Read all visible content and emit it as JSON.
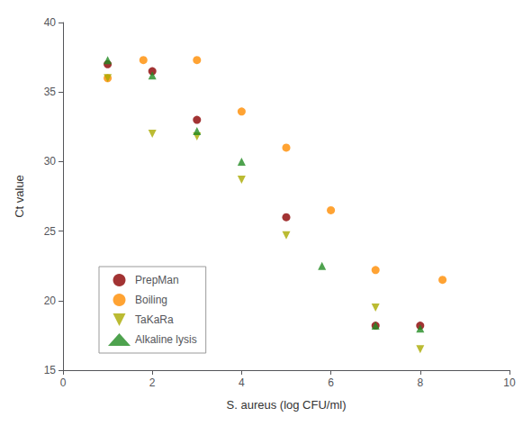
{
  "chart_data": {
    "type": "scatter",
    "xlabel": "S. aureus (log CFU/ml)",
    "ylabel": "Ct value",
    "xlim": [
      0,
      10
    ],
    "ylim": [
      15,
      40
    ],
    "xticks": [
      0,
      2,
      4,
      6,
      8,
      10
    ],
    "yticks": [
      15,
      20,
      25,
      30,
      35,
      40
    ],
    "grid": false,
    "legend": "lower left",
    "series": [
      {
        "name": "PrepMan",
        "color": "#8B0000",
        "marker": "circle",
        "x": [
          1,
          2,
          3,
          5,
          7,
          8
        ],
        "values": [
          37.0,
          36.5,
          33.0,
          26.0,
          18.2,
          18.2
        ]
      },
      {
        "name": "Boiling",
        "color": "#FF8C00",
        "marker": "circle",
        "x": [
          1,
          1.8,
          3,
          4,
          5,
          6,
          7,
          8.5
        ],
        "values": [
          36.0,
          37.3,
          37.3,
          33.6,
          31.0,
          26.5,
          22.2,
          21.5
        ]
      },
      {
        "name": "TaKaRa",
        "color": "#AAAA00",
        "marker": "triangle_down",
        "x": [
          1,
          2,
          3,
          4,
          5,
          7,
          8
        ],
        "values": [
          36.0,
          32.0,
          31.8,
          28.7,
          24.7,
          19.5,
          16.5
        ]
      },
      {
        "name": "Alkaline lysis",
        "color": "#228B22",
        "marker": "triangle_up",
        "x": [
          1,
          2,
          3,
          4,
          5.8,
          7,
          8
        ],
        "values": [
          37.3,
          36.2,
          32.2,
          30.0,
          22.5,
          18.2,
          18.0
        ]
      }
    ]
  }
}
